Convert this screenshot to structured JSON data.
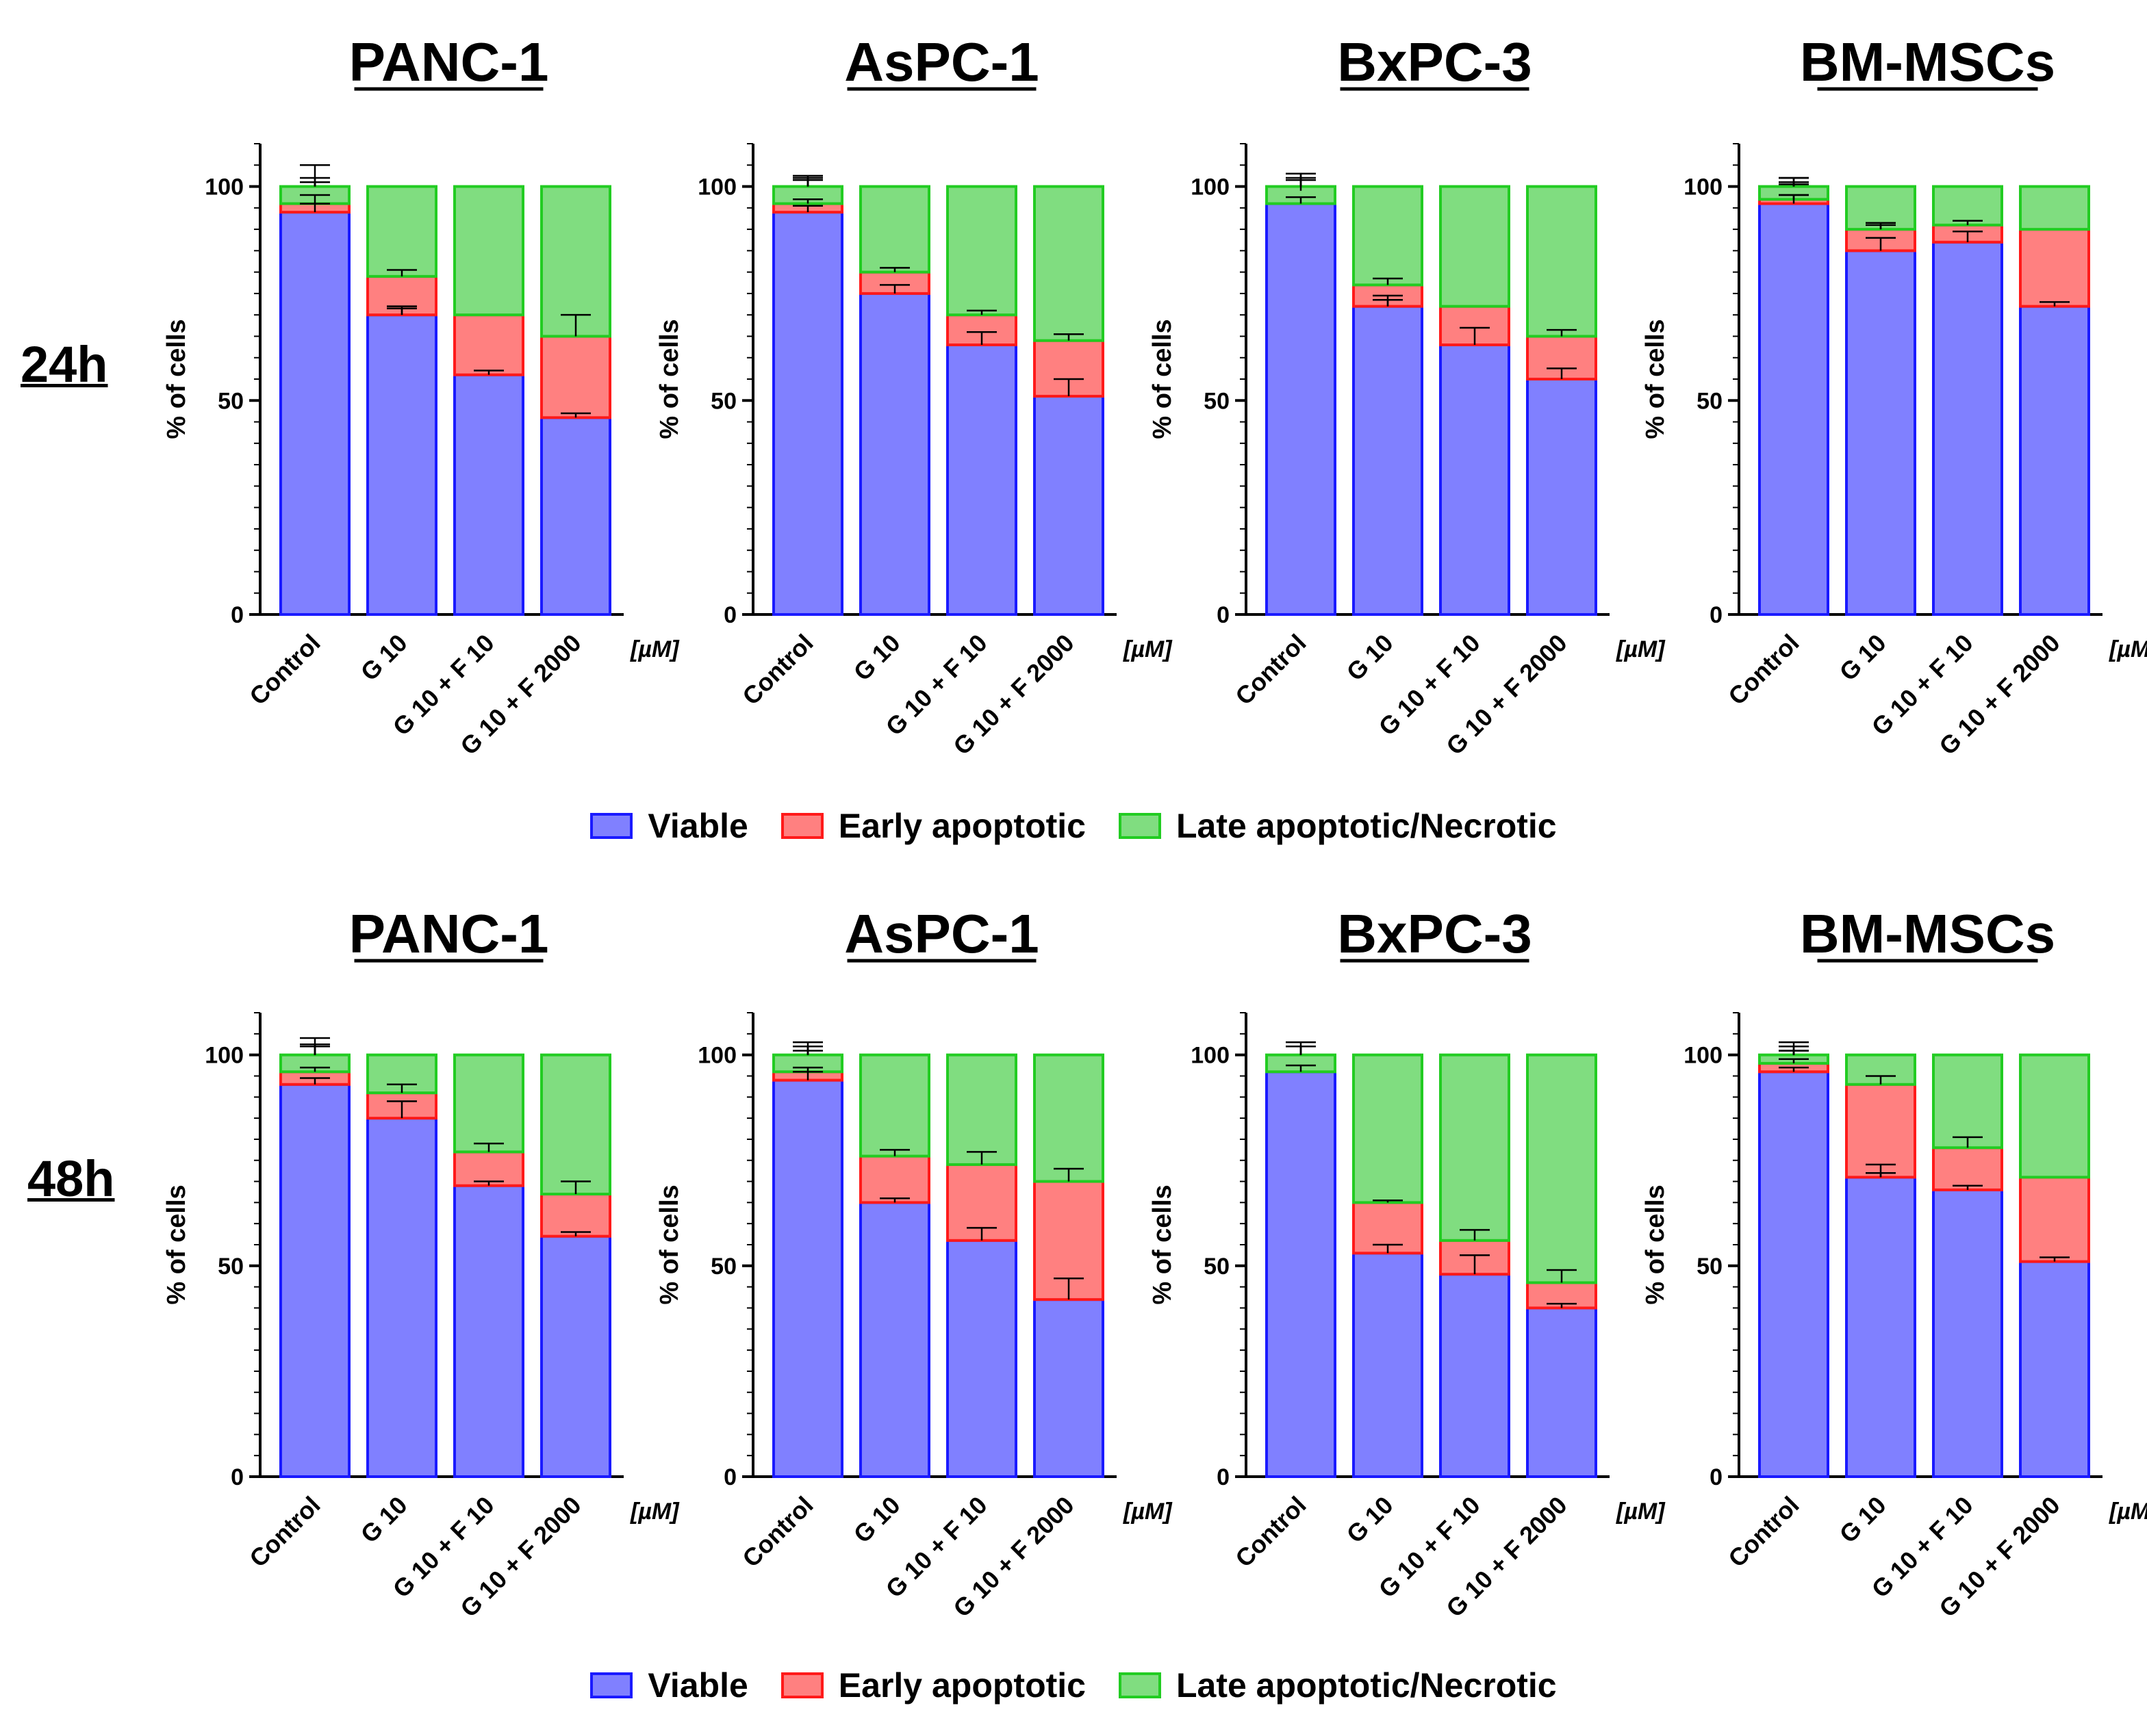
{
  "figure": {
    "rows": [
      {
        "label": "24h",
        "legend": {
          "viable": "Viable",
          "early": "Early apoptotic",
          "late": "Late apoptotic/Necrotic"
        }
      },
      {
        "label": "48h",
        "legend": {
          "viable": "Viable",
          "early": "Early apoptotic",
          "late": "Late apoptotic/Necrotic"
        }
      }
    ]
  },
  "colors": {
    "viable_fill": "#8080ff",
    "viable_edge": "#1a1aff",
    "early_fill": "#ff8080",
    "early_edge": "#ff1a1a",
    "late_fill": "#80dd80",
    "late_edge": "#22cc22"
  },
  "chart_data": [
    {
      "type": "bar",
      "stacked": true,
      "row": "24h",
      "title": "PANC-1",
      "ylabel": "% of cells",
      "unit": "[µM]",
      "ylim": [
        0,
        110
      ],
      "yticks": [
        0,
        50,
        100
      ],
      "categories": [
        "Control",
        "G 10",
        "G 10 + F 10",
        "G 10 + F 2000"
      ],
      "series": [
        {
          "name": "Viable",
          "values": [
            94,
            70,
            56,
            46
          ]
        },
        {
          "name": "Early apoptotic",
          "values": [
            2,
            9,
            14,
            19
          ]
        },
        {
          "name": "Late apoptotic/Necrotic",
          "values": [
            4,
            21,
            30,
            35
          ]
        }
      ],
      "errors": [
        {
          "level": 94,
          "err": 2
        },
        {
          "level": 70,
          "err": 2
        },
        {
          "level": 56,
          "err": 1
        },
        {
          "level": 46,
          "err": 1
        },
        {
          "level": 96,
          "err": 2
        },
        {
          "level": 79,
          "err": 1.5
        },
        {
          "level": 70,
          "err": 1.5
        },
        {
          "level": 65,
          "err": 5
        },
        {
          "level": 100,
          "err": 1
        },
        {
          "level": 100,
          "err": 2
        },
        {
          "level": 100,
          "err": 1
        },
        {
          "level": 100,
          "err": 5
        }
      ]
    },
    {
      "type": "bar",
      "stacked": true,
      "row": "24h",
      "title": "AsPC-1",
      "ylabel": "% of cells",
      "unit": "[µM]",
      "ylim": [
        0,
        110
      ],
      "yticks": [
        0,
        50,
        100
      ],
      "categories": [
        "Control",
        "G 10",
        "G 10 + F 10",
        "G 10 + F 2000"
      ],
      "series": [
        {
          "name": "Viable",
          "values": [
            94,
            75,
            63,
            51
          ]
        },
        {
          "name": "Early apoptotic",
          "values": [
            2,
            5,
            7,
            13
          ]
        },
        {
          "name": "Late apoptotic/Necrotic",
          "values": [
            4,
            20,
            30,
            36
          ]
        }
      ],
      "errors": [
        {
          "level": 94,
          "err": 1.5
        },
        {
          "level": 75,
          "err": 2
        },
        {
          "level": 63,
          "err": 3
        },
        {
          "level": 51,
          "err": 4
        },
        {
          "level": 96,
          "err": 1
        },
        {
          "level": 80,
          "err": 1
        },
        {
          "level": 70,
          "err": 1
        },
        {
          "level": 64,
          "err": 1.5
        },
        {
          "level": 100,
          "err": 1.5
        },
        {
          "level": 100,
          "err": 2
        },
        {
          "level": 100,
          "err": 2
        },
        {
          "level": 100,
          "err": 2.5
        }
      ]
    },
    {
      "type": "bar",
      "stacked": true,
      "row": "24h",
      "title": "BxPC-3",
      "ylabel": "% of cells",
      "unit": "[µM]",
      "ylim": [
        0,
        110
      ],
      "yticks": [
        0,
        50,
        100
      ],
      "categories": [
        "Control",
        "G 10",
        "G 10 + F 10",
        "G 10 + F 2000"
      ],
      "series": [
        {
          "name": "Viable",
          "values": [
            96,
            72,
            63,
            55
          ]
        },
        {
          "name": "Early apoptotic",
          "values": [
            0,
            5,
            9,
            10
          ]
        },
        {
          "name": "Late apoptotic/Necrotic",
          "values": [
            4,
            23,
            28,
            35
          ]
        }
      ],
      "errors": [
        {
          "level": 96,
          "err": 1.5
        },
        {
          "level": 72,
          "err": 1.5
        },
        {
          "level": 63,
          "err": 4
        },
        {
          "level": 55,
          "err": 2.5
        },
        {
          "level": 77,
          "err": 1.5
        },
        {
          "level": 72,
          "err": 2.5
        },
        {
          "level": 65,
          "err": 1.5
        },
        {
          "level": 100,
          "err": 1.5
        },
        {
          "level": 100,
          "err": 2
        },
        {
          "level": 99,
          "err": 4
        },
        {
          "level": 100,
          "err": 3
        }
      ]
    },
    {
      "type": "bar",
      "stacked": true,
      "row": "24h",
      "title": "BM-MSCs",
      "ylabel": "% of cells",
      "unit": "[µM]",
      "ylim": [
        0,
        110
      ],
      "yticks": [
        0,
        50,
        100
      ],
      "categories": [
        "Control",
        "G 10",
        "G 10 + F 10",
        "G 10 + F 2000"
      ],
      "series": [
        {
          "name": "Viable",
          "values": [
            96,
            85,
            87,
            72
          ]
        },
        {
          "name": "Early apoptotic",
          "values": [
            1,
            5,
            4,
            18
          ]
        },
        {
          "name": "Late apoptotic/Necrotic",
          "values": [
            3,
            10,
            9,
            10
          ]
        }
      ],
      "errors": [
        {
          "level": 96,
          "err": 2
        },
        {
          "level": 85,
          "err": 3
        },
        {
          "level": 87,
          "err": 2.5
        },
        {
          "level": 72,
          "err": 1
        },
        {
          "level": 97,
          "err": 1
        },
        {
          "level": 90,
          "err": 1.5
        },
        {
          "level": 91,
          "err": 1
        },
        {
          "level": 90,
          "err": 1
        },
        {
          "level": 100,
          "err": 2
        },
        {
          "level": 100,
          "err": 2
        },
        {
          "level": 100,
          "err": 1
        },
        {
          "level": 100,
          "err": 0.5
        }
      ]
    },
    {
      "type": "bar",
      "stacked": true,
      "row": "48h",
      "title": "PANC-1",
      "ylabel": "% of cells",
      "unit": "[µM]",
      "ylim": [
        0,
        110
      ],
      "yticks": [
        0,
        50,
        100
      ],
      "categories": [
        "Control",
        "G 10",
        "G 10 + F 10",
        "G 10 + F 2000"
      ],
      "series": [
        {
          "name": "Viable",
          "values": [
            93,
            85,
            69,
            57
          ]
        },
        {
          "name": "Early apoptotic",
          "values": [
            3,
            6,
            8,
            10
          ]
        },
        {
          "name": "Late apoptotic/Necrotic",
          "values": [
            4,
            9,
            23,
            33
          ]
        }
      ],
      "errors": [
        {
          "level": 93,
          "err": 1.5
        },
        {
          "level": 85,
          "err": 4
        },
        {
          "level": 69,
          "err": 1
        },
        {
          "level": 57,
          "err": 1
        },
        {
          "level": 96,
          "err": 1
        },
        {
          "level": 91,
          "err": 2
        },
        {
          "level": 77,
          "err": 2
        },
        {
          "level": 67,
          "err": 3
        },
        {
          "level": 100,
          "err": 2
        },
        {
          "level": 100,
          "err": 4
        },
        {
          "level": 100,
          "err": 2
        },
        {
          "level": 100,
          "err": 2.5
        }
      ]
    },
    {
      "type": "bar",
      "stacked": true,
      "row": "48h",
      "title": "AsPC-1",
      "ylabel": "% of cells",
      "unit": "[µM]",
      "ylim": [
        0,
        110
      ],
      "yticks": [
        0,
        50,
        100
      ],
      "categories": [
        "Control",
        "G 10",
        "G 10 + F 10",
        "G 10 + F 2000"
      ],
      "series": [
        {
          "name": "Viable",
          "values": [
            94,
            65,
            56,
            42
          ]
        },
        {
          "name": "Early apoptotic",
          "values": [
            2,
            11,
            18,
            28
          ]
        },
        {
          "name": "Late apoptotic/Necrotic",
          "values": [
            4,
            24,
            26,
            30
          ]
        }
      ],
      "errors": [
        {
          "level": 94,
          "err": 2
        },
        {
          "level": 65,
          "err": 1
        },
        {
          "level": 56,
          "err": 3
        },
        {
          "level": 42,
          "err": 5
        },
        {
          "level": 96,
          "err": 1
        },
        {
          "level": 76,
          "err": 1.5
        },
        {
          "level": 74,
          "err": 3
        },
        {
          "level": 70,
          "err": 3
        },
        {
          "level": 100,
          "err": 3
        },
        {
          "level": 100,
          "err": 2
        },
        {
          "level": 100,
          "err": 1
        },
        {
          "level": 100,
          "err": 2
        }
      ]
    },
    {
      "type": "bar",
      "stacked": true,
      "row": "48h",
      "title": "BxPC-3",
      "ylabel": "% of cells",
      "unit": "[µM]",
      "ylim": [
        0,
        110
      ],
      "yticks": [
        0,
        50,
        100
      ],
      "categories": [
        "Control",
        "G 10",
        "G 10 + F 10",
        "G 10 + F 2000"
      ],
      "series": [
        {
          "name": "Viable",
          "values": [
            96,
            53,
            48,
            40
          ]
        },
        {
          "name": "Early apoptotic",
          "values": [
            0,
            12,
            8,
            6
          ]
        },
        {
          "name": "Late apoptotic/Necrotic",
          "values": [
            4,
            35,
            44,
            54
          ]
        }
      ],
      "errors": [
        {
          "level": 96,
          "err": 1.5
        },
        {
          "level": 53,
          "err": 2
        },
        {
          "level": 48,
          "err": 4.5
        },
        {
          "level": 40,
          "err": 1
        },
        {
          "level": 65,
          "err": 0.5
        },
        {
          "level": 56,
          "err": 2.5
        },
        {
          "level": 46,
          "err": 3
        },
        {
          "level": 100,
          "err": 2
        },
        {
          "level": 100,
          "err": 2
        },
        {
          "level": 100,
          "err": 3
        },
        {
          "level": 100,
          "err": 2
        }
      ]
    },
    {
      "type": "bar",
      "stacked": true,
      "row": "48h",
      "title": "BM-MSCs",
      "ylabel": "% of cells",
      "unit": "[µM]",
      "ylim": [
        0,
        110
      ],
      "yticks": [
        0,
        50,
        100
      ],
      "categories": [
        "Control",
        "G 10",
        "G 10 + F 10",
        "G 10 + F 2000"
      ],
      "series": [
        {
          "name": "Viable",
          "values": [
            96,
            71,
            68,
            51
          ]
        },
        {
          "name": "Early apoptotic",
          "values": [
            2,
            22,
            10,
            20
          ]
        },
        {
          "name": "Late apoptotic/Necrotic",
          "values": [
            2,
            7,
            22,
            29
          ]
        }
      ],
      "errors": [
        {
          "level": 96,
          "err": 1
        },
        {
          "level": 71,
          "err": 3
        },
        {
          "level": 68,
          "err": 1
        },
        {
          "level": 51,
          "err": 1
        },
        {
          "level": 98,
          "err": 1
        },
        {
          "level": 93,
          "err": 2
        },
        {
          "level": 78,
          "err": 2.5
        },
        {
          "level": 71,
          "err": 1
        },
        {
          "level": 100,
          "err": 3
        },
        {
          "level": 100,
          "err": 1
        },
        {
          "level": 100,
          "err": 2
        },
        {
          "level": 100,
          "err": 1
        }
      ]
    }
  ]
}
